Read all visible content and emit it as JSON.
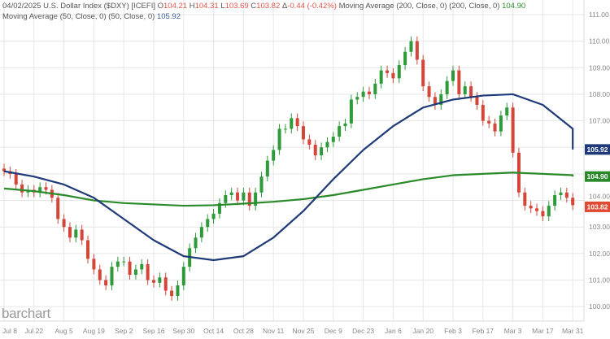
{
  "header": {
    "line1_prefix": "04/02/2025 U.S. Dollar Index ($DXY) [ICEFI]",
    "open_label": "O",
    "open": "104.21",
    "high_label": "H",
    "high": "104.31",
    "low_label": "L",
    "low": "103.69",
    "close_label": "C",
    "close": "103.82",
    "change_label": "Δ",
    "change": "-0.44 (-0.42%)",
    "ma200_label": "Moving Average (200, Close, 0) (200, Close, 0)",
    "ma200_value": "104.90",
    "ma50_label": "Moving Average (50, Close, 0) (50, Close, 0)",
    "ma50_value": "105.92"
  },
  "logo": "barchart",
  "colors": {
    "up": "#2e9a3a",
    "down": "#d4463a",
    "ma50": "#1f3a78",
    "ma200": "#2a8a2a",
    "grid": "#e6e6e6",
    "axis_text": "#888888"
  },
  "chart_data": {
    "type": "candlestick",
    "ylim": [
      99.6,
      111.3
    ],
    "y_ticks": [
      "100.00",
      "101.00",
      "102.00",
      "103.00",
      "104.00",
      "107.00",
      "108.00",
      "109.00",
      "110.00",
      "111.00"
    ],
    "x_ticks": [
      "Jul 8",
      "Jul 22",
      "Aug 5",
      "Aug 19",
      "Sep 2",
      "Sep 16",
      "Sep 30",
      "Oct 14",
      "Oct 28",
      "Nov 11",
      "Nov 25",
      "Dec 9",
      "Dec 23",
      "Jan 6",
      "Jan 20",
      "Feb 3",
      "Feb 17",
      "Mar 3",
      "Mar 17",
      "Mar 31"
    ],
    "grid": true,
    "closes": [
      105.1,
      105.0,
      104.6,
      104.3,
      104.4,
      104.3,
      104.5,
      104.4,
      104.1,
      103.3,
      103.0,
      102.6,
      102.9,
      102.5,
      101.8,
      101.4,
      101.0,
      100.8,
      101.5,
      101.7,
      101.7,
      101.2,
      101.4,
      101.6,
      101.0,
      100.9,
      101.1,
      100.6,
      100.4,
      100.8,
      101.5,
      102.2,
      102.6,
      103.0,
      103.3,
      103.5,
      103.9,
      104.2,
      104.3,
      104.0,
      104.3,
      103.8,
      104.3,
      104.9,
      105.5,
      105.9,
      106.7,
      106.7,
      107.1,
      106.8,
      106.3,
      106.1,
      105.7,
      106.0,
      106.2,
      106.4,
      106.8,
      106.9,
      107.8,
      107.9,
      108.1,
      108.0,
      108.4,
      108.9,
      108.8,
      108.6,
      109.1,
      109.6,
      110.0,
      109.3,
      108.3,
      107.9,
      107.6,
      108.0,
      108.5,
      108.9,
      108.0,
      108.3,
      107.9,
      107.6,
      107.0,
      106.9,
      106.6,
      107.2,
      107.5,
      105.8,
      104.3,
      103.8,
      103.7,
      103.6,
      103.4,
      103.8,
      104.2,
      104.3,
      104.1,
      103.82
    ],
    "series": [
      {
        "name": "Moving Average (200, Close, 0)",
        "values": [
          104.45,
          104.35,
          104.2,
          104.0,
          103.9,
          103.85,
          103.8,
          103.82,
          103.88,
          103.95,
          104.05,
          104.2,
          104.4,
          104.6,
          104.8,
          104.95,
          105.0,
          105.05,
          105.0,
          104.95,
          104.9
        ],
        "last": "104.90"
      },
      {
        "name": "Moving Average (50, Close, 0)",
        "values": [
          105.1,
          104.9,
          104.6,
          104.1,
          103.3,
          102.5,
          101.9,
          101.75,
          101.9,
          102.6,
          103.6,
          104.8,
          105.9,
          106.8,
          107.5,
          107.8,
          107.95,
          108.0,
          107.6,
          106.7,
          105.92
        ],
        "last": "105.92"
      }
    ],
    "last_price": "103.82"
  }
}
